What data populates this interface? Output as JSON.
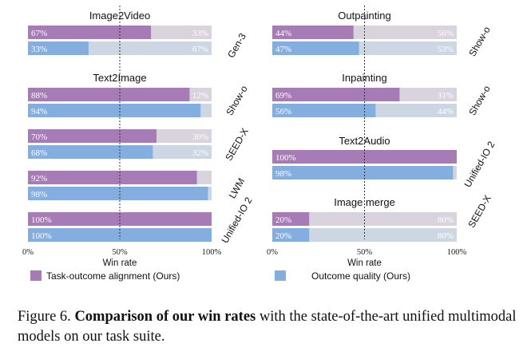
{
  "chart_data": {
    "type": "bar",
    "orientation": "horizontal-stacked",
    "xlabel": "Win rate",
    "xticks": [
      "0%",
      "50%",
      "100%"
    ],
    "xlim": [
      0,
      100
    ],
    "reference_line": 50,
    "legend": [
      {
        "name": "Task-outcome alignment (Ours)",
        "color": "#a77bb6"
      },
      {
        "name": "Outcome quality (Ours)",
        "color": "#84aee0"
      }
    ],
    "colors": {
      "alignment": "#a77bb6",
      "quality": "#84aee0",
      "alignment_rest": "#d9d3dd",
      "quality_rest": "#ccd7e3"
    },
    "panels": [
      {
        "column": 0,
        "title": "Image2Video",
        "groups": [
          {
            "model": "Gen-3",
            "alignment": [
              67,
              33
            ],
            "quality": [
              33,
              67
            ]
          }
        ]
      },
      {
        "column": 0,
        "title": "Text2Image",
        "groups": [
          {
            "model": "Show-o",
            "alignment": [
              88,
              12
            ],
            "quality": [
              94,
              null
            ]
          },
          {
            "model": "SEED-X",
            "alignment": [
              70,
              30
            ],
            "quality": [
              68,
              32
            ]
          },
          {
            "model": "LWM",
            "alignment": [
              92,
              null
            ],
            "quality": [
              98,
              null
            ]
          },
          {
            "model": "Unified-IO 2",
            "alignment": [
              100,
              null
            ],
            "quality": [
              100,
              null
            ]
          }
        ]
      },
      {
        "column": 1,
        "title": "Outpainting",
        "groups": [
          {
            "model": "Show-o",
            "alignment": [
              44,
              56
            ],
            "quality": [
              47,
              53
            ]
          }
        ]
      },
      {
        "column": 1,
        "title": "Inpainting",
        "groups": [
          {
            "model": "Show-o",
            "alignment": [
              69,
              31
            ],
            "quality": [
              56,
              44
            ]
          }
        ]
      },
      {
        "column": 1,
        "title": "Text2Audio",
        "groups": [
          {
            "model": "Unified-IO 2",
            "alignment": [
              100,
              null
            ],
            "quality": [
              98,
              null
            ]
          }
        ]
      },
      {
        "column": 1,
        "title": "Image merge",
        "groups": [
          {
            "model": "SEED-X",
            "alignment": [
              20,
              80
            ],
            "quality": [
              20,
              80
            ]
          }
        ]
      }
    ]
  },
  "caption": {
    "prefix": "Figure 6. ",
    "bold": "Comparison of our win rates",
    "rest": " with the state-of-the-art unified multimodal models on our task suite."
  }
}
